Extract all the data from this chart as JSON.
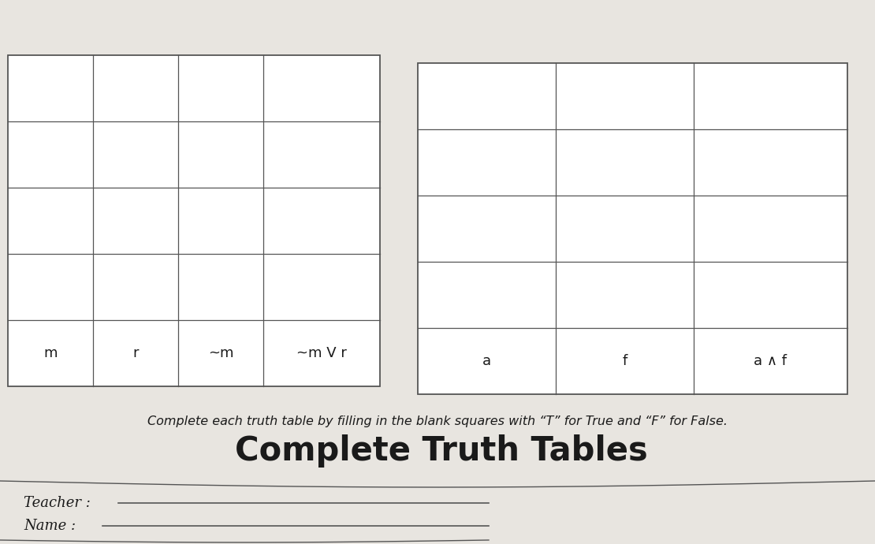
{
  "background_color": "#d8d4ce",
  "page_color": "#e8e5e0",
  "title": "Complete Truth Tables",
  "title_fontsize": 30,
  "title_fontweight": "bold",
  "subtitle": "Complete each truth table by filling in the blank squares with “T” for True and “F” for False.",
  "subtitle_fontsize": 11.5,
  "name_label": "Name :",
  "teacher_label": "Teacher :",
  "header_label_fontsize": 13,
  "table1_headers": [
    "m",
    "r",
    "~m",
    "~m V r"
  ],
  "table1_rows": 4,
  "table2_headers": [
    "a",
    "f",
    "a ∧ f"
  ],
  "table2_rows": 4,
  "line_color": "#555555",
  "text_color": "#1a1a1a",
  "table_header_fontsize": 13
}
